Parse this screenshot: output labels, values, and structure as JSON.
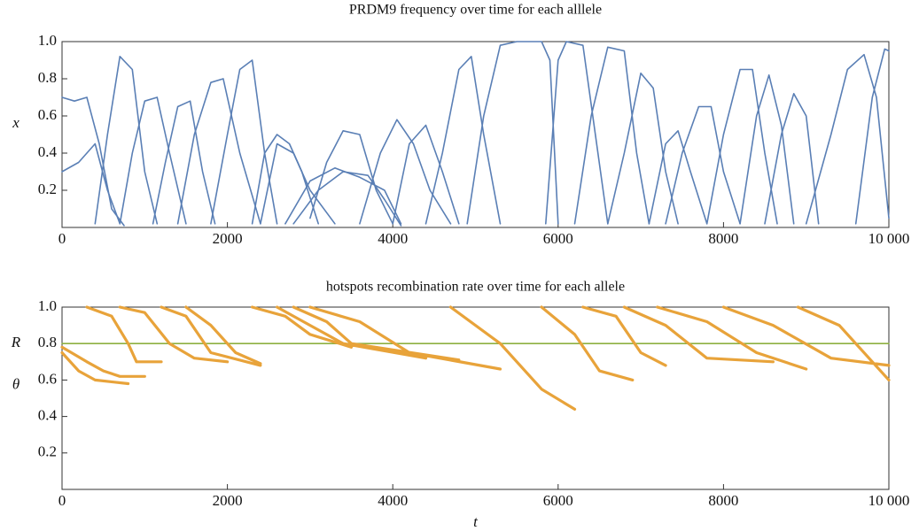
{
  "chart_data": [
    {
      "type": "line",
      "title": "PRDM9 frequency over time for each alllele",
      "ylabel": "x",
      "ylabel_color": "#5a7fb5",
      "xlim": [
        0,
        10000
      ],
      "ylim": [
        0,
        1
      ],
      "xticks": [
        0,
        2000,
        4000,
        6000,
        8000,
        {
          "value": 10000,
          "label": "10 000"
        }
      ],
      "yticks": [
        0.2,
        0.4,
        0.6,
        0.8,
        {
          "value": 1,
          "label": "1.0"
        }
      ],
      "series": [
        {
          "color": "#5a7fb5",
          "x": [
            0,
            150,
            300,
            450,
            600,
            750
          ],
          "values": [
            0.7,
            0.68,
            0.7,
            0.45,
            0.1,
            0.01
          ]
        },
        {
          "color": "#5a7fb5",
          "x": [
            0,
            200,
            400,
            550,
            700
          ],
          "values": [
            0.3,
            0.35,
            0.45,
            0.2,
            0.02
          ]
        },
        {
          "color": "#5a7fb5",
          "x": [
            400,
            550,
            700,
            850,
            1000,
            1150
          ],
          "values": [
            0.02,
            0.5,
            0.92,
            0.85,
            0.3,
            0.02
          ]
        },
        {
          "color": "#5a7fb5",
          "x": [
            700,
            850,
            1000,
            1150,
            1300,
            1500
          ],
          "values": [
            0.02,
            0.4,
            0.68,
            0.7,
            0.4,
            0.02
          ]
        },
        {
          "color": "#5a7fb5",
          "x": [
            1100,
            1250,
            1400,
            1550,
            1700,
            1850
          ],
          "values": [
            0.02,
            0.35,
            0.65,
            0.68,
            0.3,
            0.02
          ]
        },
        {
          "color": "#5a7fb5",
          "x": [
            1400,
            1600,
            1800,
            1950,
            2150,
            2400
          ],
          "values": [
            0.02,
            0.5,
            0.78,
            0.8,
            0.4,
            0.02
          ]
        },
        {
          "color": "#5a7fb5",
          "x": [
            1800,
            2000,
            2150,
            2300,
            2450,
            2600
          ],
          "values": [
            0.02,
            0.5,
            0.85,
            0.9,
            0.4,
            0.02
          ]
        },
        {
          "color": "#5a7fb5",
          "x": [
            2300,
            2450,
            2600,
            2750,
            2900,
            3100
          ],
          "values": [
            0.02,
            0.4,
            0.5,
            0.45,
            0.3,
            0.02
          ]
        },
        {
          "color": "#5a7fb5",
          "x": [
            2400,
            2600,
            2800,
            3000,
            3300
          ],
          "values": [
            0.02,
            0.45,
            0.4,
            0.2,
            0.02
          ]
        },
        {
          "color": "#5a7fb5",
          "x": [
            2700,
            3000,
            3300,
            3600,
            3900,
            4100
          ],
          "values": [
            0.02,
            0.25,
            0.32,
            0.27,
            0.2,
            0.02
          ]
        },
        {
          "color": "#5a7fb5",
          "x": [
            2800,
            3100,
            3400,
            3700,
            3900,
            4100
          ],
          "values": [
            0.02,
            0.2,
            0.3,
            0.28,
            0.15,
            0.01
          ]
        },
        {
          "color": "#5a7fb5",
          "x": [
            3000,
            3200,
            3400,
            3600,
            3800,
            4000
          ],
          "values": [
            0.05,
            0.35,
            0.52,
            0.5,
            0.2,
            0.02
          ]
        },
        {
          "color": "#5a7fb5",
          "x": [
            3600,
            3850,
            4050,
            4250,
            4450,
            4700
          ],
          "values": [
            0.02,
            0.4,
            0.58,
            0.45,
            0.2,
            0.02
          ]
        },
        {
          "color": "#5a7fb5",
          "x": [
            4000,
            4200,
            4400,
            4600,
            4800
          ],
          "values": [
            0.02,
            0.45,
            0.55,
            0.3,
            0.02
          ]
        },
        {
          "color": "#5a7fb5",
          "x": [
            4400,
            4600,
            4800,
            4950,
            5100,
            5300
          ],
          "values": [
            0.02,
            0.4,
            0.85,
            0.92,
            0.5,
            0.02
          ]
        },
        {
          "color": "#5a7fb5",
          "x": [
            4900,
            5100,
            5300,
            5500,
            5800,
            5900,
            6000
          ],
          "values": [
            0.02,
            0.6,
            0.98,
            1,
            1,
            0.9,
            0.02
          ]
        },
        {
          "color": "#5a7fb5",
          "x": [
            5850,
            6000,
            6100,
            6300,
            6450,
            6600
          ],
          "values": [
            0.02,
            0.9,
            1,
            0.98,
            0.5,
            0.02
          ]
        },
        {
          "color": "#5a7fb5",
          "x": [
            6200,
            6400,
            6600,
            6800,
            6950,
            7100
          ],
          "values": [
            0.02,
            0.6,
            0.97,
            0.95,
            0.4,
            0.02
          ]
        },
        {
          "color": "#5a7fb5",
          "x": [
            6600,
            6800,
            7000,
            7150,
            7300,
            7450
          ],
          "values": [
            0.02,
            0.4,
            0.83,
            0.75,
            0.3,
            0.02
          ]
        },
        {
          "color": "#5a7fb5",
          "x": [
            7100,
            7300,
            7450,
            7600,
            7800
          ],
          "values": [
            0.02,
            0.45,
            0.52,
            0.3,
            0.02
          ]
        },
        {
          "color": "#5a7fb5",
          "x": [
            7300,
            7500,
            7700,
            7850,
            8000,
            8200
          ],
          "values": [
            0.02,
            0.4,
            0.65,
            0.65,
            0.3,
            0.02
          ]
        },
        {
          "color": "#5a7fb5",
          "x": [
            7800,
            8000,
            8200,
            8350,
            8500,
            8650
          ],
          "values": [
            0.02,
            0.5,
            0.85,
            0.85,
            0.4,
            0.02
          ]
        },
        {
          "color": "#5a7fb5",
          "x": [
            8200,
            8400,
            8550,
            8700,
            8850
          ],
          "values": [
            0.02,
            0.6,
            0.82,
            0.55,
            0.02
          ]
        },
        {
          "color": "#5a7fb5",
          "x": [
            8500,
            8700,
            8850,
            9000,
            9150
          ],
          "values": [
            0.02,
            0.5,
            0.72,
            0.6,
            0.02
          ]
        },
        {
          "color": "#5a7fb5",
          "x": [
            9000,
            9300,
            9500,
            9700,
            9850,
            10000
          ],
          "values": [
            0.02,
            0.5,
            0.85,
            0.93,
            0.7,
            0.05
          ]
        },
        {
          "color": "#5a7fb5",
          "x": [
            9600,
            9800,
            9950,
            10000
          ],
          "values": [
            0.02,
            0.7,
            0.96,
            0.95
          ]
        }
      ]
    },
    {
      "type": "line",
      "title": "hotspots recombination rate over time for each allele",
      "xlabel": "t",
      "xlim": [
        0,
        10000
      ],
      "ylim": [
        0,
        1
      ],
      "xticks": [
        0,
        2000,
        4000,
        6000,
        8000,
        {
          "value": 10000,
          "label": "10 000"
        }
      ],
      "yticks": [
        0.2,
        0.4,
        0.6,
        0.8,
        {
          "value": 1,
          "label": "1.0"
        }
      ],
      "series": [
        {
          "name": "R",
          "color": "#8db040",
          "x": [
            0,
            10000
          ],
          "values": [
            0.8,
            0.8
          ]
        },
        {
          "name": "θ",
          "color": "#e8a33a",
          "x": [
            0,
            200,
            400,
            800,
            null,
            0,
            300,
            500,
            700,
            1000,
            null,
            300,
            600,
            800,
            900,
            1200,
            null,
            700,
            1000,
            1300,
            1600,
            2000,
            null,
            1200,
            1500,
            1800,
            2400,
            null,
            1500,
            1800,
            2100,
            2400,
            null,
            2300,
            2700,
            3000,
            3500,
            null,
            2600,
            3000,
            3400,
            4400,
            null,
            2800,
            3200,
            3500,
            4800,
            null,
            3000,
            3600,
            4200,
            5300,
            null,
            4700,
            5300,
            5800,
            6200,
            null,
            5800,
            6200,
            6500,
            6900,
            null,
            6300,
            6700,
            7000,
            7300,
            null,
            6800,
            7300,
            7800,
            8600,
            null,
            7200,
            7800,
            8400,
            9000,
            null,
            8000,
            8600,
            9300,
            10000,
            null,
            8900,
            9400,
            9800,
            10000
          ],
          "values": [
            0.75,
            0.65,
            0.6,
            0.58,
            null,
            0.78,
            0.7,
            0.65,
            0.62,
            0.62,
            null,
            1,
            0.95,
            0.8,
            0.7,
            0.7,
            null,
            1,
            0.97,
            0.8,
            0.72,
            0.7,
            null,
            1,
            0.95,
            0.75,
            0.68,
            null,
            1,
            0.9,
            0.75,
            0.69,
            null,
            1,
            0.95,
            0.85,
            0.78,
            null,
            1,
            0.9,
            0.8,
            0.72,
            null,
            1,
            0.92,
            0.8,
            0.71,
            null,
            1,
            0.92,
            0.75,
            0.66,
            null,
            1,
            0.8,
            0.55,
            0.44,
            null,
            1,
            0.85,
            0.65,
            0.6,
            null,
            1,
            0.95,
            0.75,
            0.68,
            null,
            1,
            0.9,
            0.72,
            0.7,
            null,
            1,
            0.92,
            0.75,
            0.66,
            null,
            1,
            0.9,
            0.72,
            0.68,
            null,
            1,
            0.9,
            0.7,
            0.6
          ]
        }
      ]
    }
  ]
}
